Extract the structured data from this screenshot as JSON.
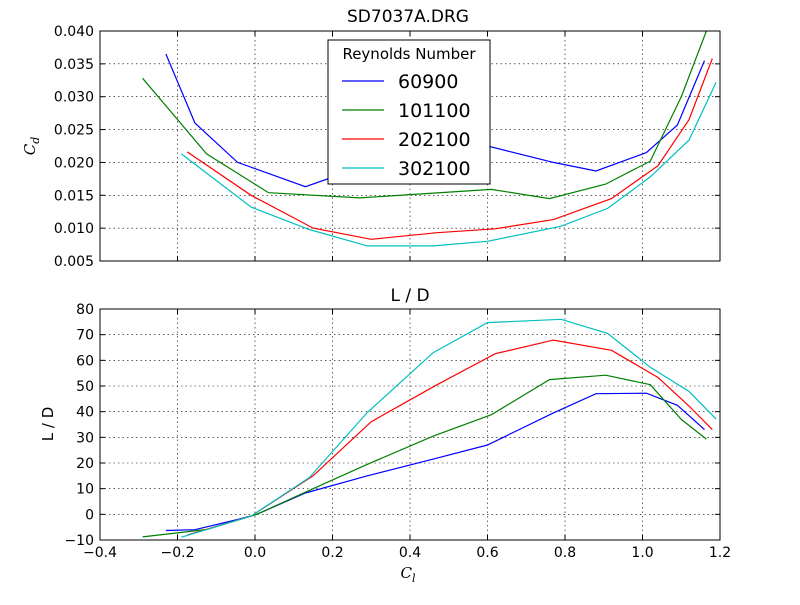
{
  "chart_data": [
    {
      "type": "line",
      "title": "SD7037A.DRG",
      "xlabel": "",
      "ylabel": "C",
      "ylabel_subscript": "d",
      "xlim": [
        -0.4,
        1.2
      ],
      "ylim": [
        0.005,
        0.04
      ],
      "xticks": [
        -0.4,
        -0.2,
        0.0,
        0.2,
        0.4,
        0.6,
        0.8,
        1.0,
        1.2
      ],
      "xticklabels": [
        "",
        "",
        "",
        "",
        "",
        "",
        "",
        "",
        ""
      ],
      "yticks": [
        0.005,
        0.01,
        0.015,
        0.02,
        0.025,
        0.03,
        0.035,
        0.04
      ],
      "yticklabels": [
        "0.005",
        "0.010",
        "0.015",
        "0.020",
        "0.025",
        "0.030",
        "0.035",
        "0.040"
      ],
      "grid": true,
      "legend": {
        "title": "Reynolds Number",
        "placement": "top-center",
        "entries": [
          "60900",
          "101100",
          "202100",
          "302100"
        ]
      },
      "series": [
        {
          "name": "60900",
          "color": "#0000ff",
          "x": [
            -0.23,
            -0.155,
            -0.045,
            0.13,
            0.26,
            0.4,
            0.6,
            0.77,
            0.88,
            1.01,
            1.09,
            1.16
          ],
          "y": [
            0.0365,
            0.026,
            0.02,
            0.0163,
            0.019,
            0.021,
            0.0225,
            0.02,
            0.0187,
            0.0215,
            0.0257,
            0.0355
          ]
        },
        {
          "name": "101100",
          "color": "#008000",
          "x": [
            -0.29,
            -0.125,
            0.035,
            0.27,
            0.61,
            0.76,
            0.905,
            1.02,
            1.1,
            1.165
          ],
          "y": [
            0.0328,
            0.0213,
            0.0154,
            0.0146,
            0.0159,
            0.0145,
            0.0167,
            0.0202,
            0.03,
            0.04
          ]
        },
        {
          "name": "202100",
          "color": "#ff0000",
          "x": [
            -0.175,
            -0.01,
            0.15,
            0.3,
            0.47,
            0.62,
            0.77,
            0.92,
            1.04,
            1.12,
            1.18
          ],
          "y": [
            0.0216,
            0.015,
            0.01,
            0.0083,
            0.0093,
            0.0099,
            0.0113,
            0.0145,
            0.0195,
            0.0265,
            0.0358
          ]
        },
        {
          "name": "302100",
          "color": "#00bfbf",
          "x": [
            -0.19,
            -0.01,
            0.14,
            0.29,
            0.46,
            0.6,
            0.79,
            0.91,
            1.02,
            1.12,
            1.19
          ],
          "y": [
            0.0213,
            0.0132,
            0.0098,
            0.0073,
            0.0073,
            0.008,
            0.0103,
            0.013,
            0.0178,
            0.0234,
            0.0322
          ]
        }
      ]
    },
    {
      "type": "line",
      "title": "L / D",
      "xlabel": "C",
      "xlabel_subscript": "l",
      "ylabel": "L / D",
      "xlim": [
        -0.4,
        1.2
      ],
      "ylim": [
        -10,
        80
      ],
      "xticks": [
        -0.4,
        -0.2,
        0.0,
        0.2,
        0.4,
        0.6,
        0.8,
        1.0,
        1.2
      ],
      "xticklabels": [
        "−0.4",
        "−0.2",
        "0.0",
        "0.2",
        "0.4",
        "0.6",
        "0.8",
        "1.0",
        "1.2"
      ],
      "yticks": [
        -10,
        0,
        10,
        20,
        30,
        40,
        50,
        60,
        70,
        80
      ],
      "yticklabels": [
        "−10",
        "0",
        "10",
        "20",
        "30",
        "40",
        "50",
        "60",
        "70",
        "80"
      ],
      "grid": true,
      "series": [
        {
          "name": "60900",
          "color": "#0000ff",
          "x": [
            -0.23,
            -0.155,
            -0.045,
            0.005,
            0.13,
            0.29,
            0.46,
            0.6,
            0.77,
            0.88,
            1.01,
            1.09,
            1.16
          ],
          "y": [
            -6.3,
            -6,
            -2,
            0,
            8.3,
            15,
            21.5,
            27,
            39.5,
            47,
            47.2,
            42.5,
            33
          ]
        },
        {
          "name": "101100",
          "color": "#008000",
          "x": [
            -0.29,
            -0.125,
            0.005,
            0.15,
            0.29,
            0.46,
            0.61,
            0.76,
            0.905,
            1.02,
            1.1,
            1.165
          ],
          "y": [
            -8.8,
            -5.9,
            0,
            10,
            19.5,
            30.5,
            38.8,
            52.5,
            54.2,
            50.5,
            37,
            29.3
          ]
        },
        {
          "name": "202100",
          "color": "#ff0000",
          "x": [
            -0.175,
            -0.01,
            0.15,
            0.3,
            0.47,
            0.62,
            0.77,
            0.92,
            1.04,
            1.12,
            1.18
          ],
          "y": [
            -8.1,
            -0.7,
            15,
            36.1,
            50.5,
            62.6,
            67.9,
            63.9,
            53.3,
            42.2,
            33
          ]
        },
        {
          "name": "302100",
          "color": "#00bfbf",
          "x": [
            -0.19,
            -0.01,
            0.14,
            0.29,
            0.46,
            0.6,
            0.79,
            0.91,
            1.02,
            1.12,
            1.19
          ],
          "y": [
            -8.9,
            -0.7,
            14.3,
            39.7,
            63,
            74.7,
            76,
            70.5,
            57.3,
            47.9,
            37.1
          ]
        }
      ]
    }
  ]
}
